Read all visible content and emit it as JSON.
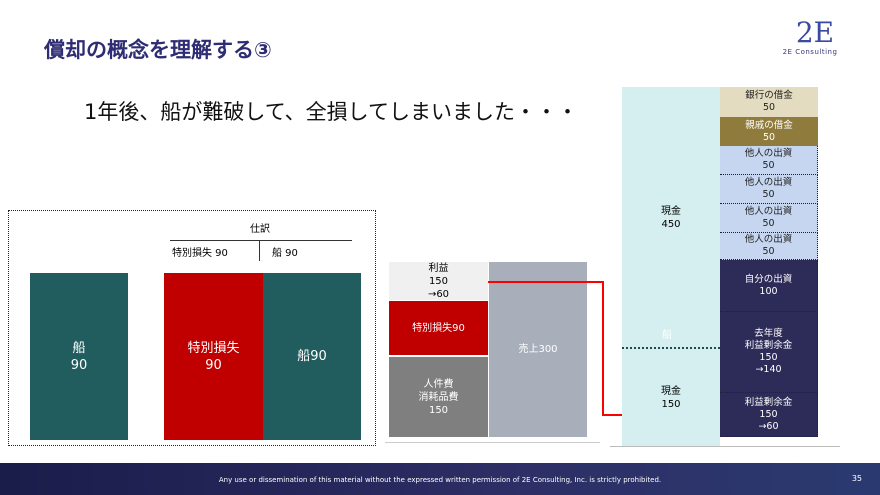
{
  "title": "償却の概念を理解する③",
  "subtitle": "1年後、船が難破して、全損してしまいました・・・",
  "logo": {
    "mark": "2E",
    "name": "2E Consulting"
  },
  "left_panel": {
    "journal_header": "仕訳",
    "debit": "特別損失 90",
    "credit": "船 90",
    "ship_box": "船\n90",
    "loss_box": "特別損失\n90",
    "ship_box2": "船90"
  },
  "pl": {
    "profit": "利益\n150\n→60",
    "loss": "特別損失90",
    "costs": "人件費\n消耗品費\n150",
    "sales": "売上300"
  },
  "bs": {
    "cash_top": "現金\n450",
    "ship_hidden": "船",
    "cash_bottom": "現金\n150",
    "items": [
      {
        "label": "銀行の借金\n50",
        "color": "#e3dcc0",
        "text": "#222"
      },
      {
        "label": "親戚の借金\n50",
        "color": "#8f7b3c",
        "text": "#fff"
      },
      {
        "label": "他人の出資\n50",
        "color": "#c6d6f0",
        "text": "#222"
      },
      {
        "label": "他人の出資\n50",
        "color": "#c6d6f0",
        "text": "#222"
      },
      {
        "label": "他人の出資\n50",
        "color": "#c6d6f0",
        "text": "#222"
      },
      {
        "label": "他人の出資\n50",
        "color": "#c6d6f0",
        "text": "#222"
      },
      {
        "label": "自分の出資\n100",
        "color": "#2d2b58",
        "text": "#fff"
      },
      {
        "label": "去年度\n利益剰余金\n150\n→140",
        "color": "#2d2b58",
        "text": "#fff"
      },
      {
        "label": "利益剰余金\n150\n→60",
        "color": "#2d2b58",
        "text": "#fff"
      }
    ]
  },
  "colors": {
    "accent_red": "#c00000",
    "teal": "#215d5e",
    "navy": "#2e2c72"
  },
  "footer": {
    "notice": "Any use or dissemination of this material without the expressed written permission of 2E Consulting, Inc. is strictly prohibited.",
    "page": "35"
  }
}
